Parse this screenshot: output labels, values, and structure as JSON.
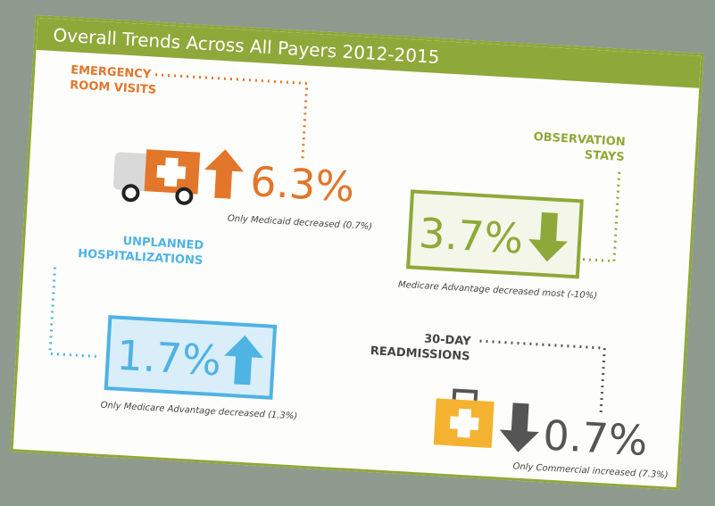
{
  "title": "Overall Trends Across All Payers 2012-2015",
  "metrics": [
    {
      "label": [
        "EMERGENCY",
        "ROOM VISITS"
      ],
      "value": "6.3%",
      "direction": "up",
      "color": "#e2762a",
      "note": "Only Medicaid decreased (0.7%)"
    },
    {
      "label": [
        "OBSERVATION",
        "STAYS"
      ],
      "value": "3.7%",
      "direction": "down",
      "color": "#8fa83a",
      "note": "Medicare Advantage decreased most (-10%)"
    },
    {
      "label": [
        "UNPLANNED",
        "HOSPITALIZATIONS"
      ],
      "value": "1.7%",
      "direction": "up",
      "color": "#4fb3e3",
      "note": "Only Medicare Advantage decreased (1.3%)"
    },
    {
      "label": [
        "30-DAY",
        "READMISSIONS"
      ],
      "value": "0.7%",
      "direction": "down",
      "color": "#555555",
      "note": "Only Commercial increased (7.3%)"
    }
  ]
}
